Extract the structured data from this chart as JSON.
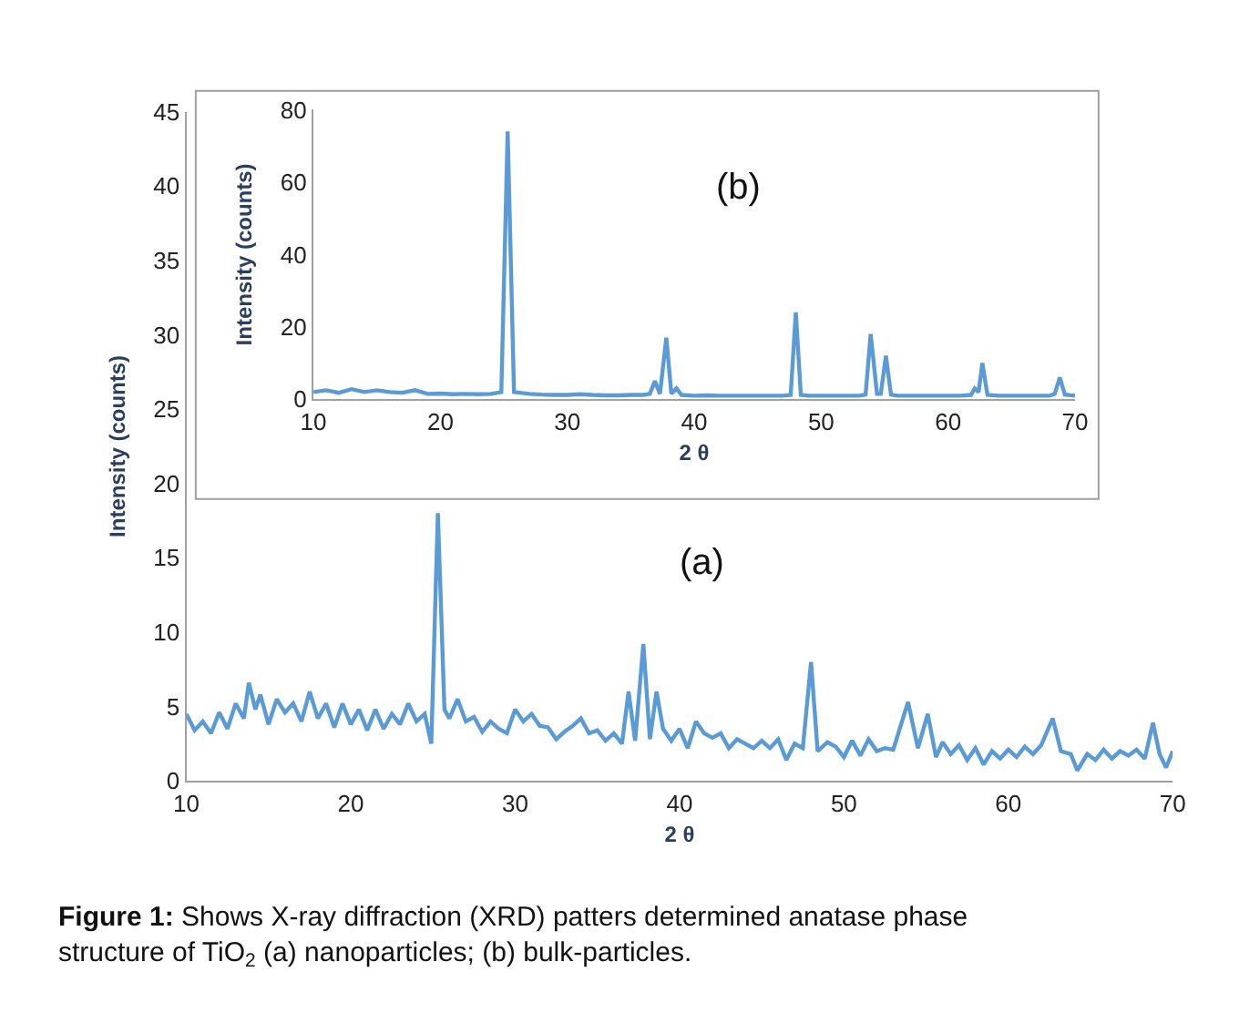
{
  "chart_data": [
    {
      "type": "line",
      "xlabel": "2 θ",
      "ylabel": "Intensity (counts)",
      "xlim": [
        10,
        70
      ],
      "xticks": [
        10,
        20,
        30,
        40,
        50,
        60,
        70
      ],
      "ylim": [
        0,
        45
      ],
      "yticks": [
        0,
        5,
        10,
        15,
        20,
        25,
        30,
        35,
        40,
        45
      ],
      "grid": false,
      "marker": "none",
      "line_style": "solid",
      "annotations": [
        "(a)",
        "Figure 1: Shows X-ray diffraction (XRD) patters determined anatase phase structure of TiO$_{2}$ (a) nanoparticles; (b) bulk-particles."
      ],
      "series": [
        {
          "color": "#5b9bd5",
          "x": [
            10,
            10.5,
            11,
            11.5,
            12,
            12.5,
            13,
            13.5,
            13.8,
            14.2,
            14.5,
            15,
            15.5,
            16,
            16.5,
            17,
            17.5,
            18,
            18.5,
            19,
            19.5,
            20,
            20.5,
            21,
            21.5,
            22,
            22.5,
            23,
            23.5,
            24,
            24.5,
            24.9,
            25.3,
            25.7,
            26,
            26.5,
            27,
            27.5,
            28,
            28.5,
            29,
            29.5,
            30,
            30.5,
            31,
            31.5,
            32,
            32.5,
            33,
            33.5,
            34,
            34.5,
            35,
            35.5,
            36,
            36.5,
            36.9,
            37.3,
            37.8,
            38.2,
            38.6,
            39,
            39.5,
            40,
            40.5,
            41,
            41.5,
            42,
            42.5,
            43,
            43.5,
            44,
            44.5,
            45,
            45.5,
            46,
            46.5,
            47,
            47.5,
            48,
            48.4,
            49,
            49.5,
            50,
            50.5,
            51,
            51.5,
            52,
            52.5,
            53,
            53.9,
            54.5,
            55.1,
            55.6,
            56,
            56.5,
            57,
            57.5,
            58,
            58.5,
            59,
            59.5,
            60,
            60.5,
            61,
            61.5,
            62,
            62.7,
            63.2,
            63.8,
            64.2,
            64.8,
            65.3,
            65.8,
            66.3,
            66.8,
            67.3,
            67.8,
            68.3,
            68.8,
            69.2,
            69.6,
            70
          ],
          "values": [
            4.5,
            3.4,
            4,
            3.2,
            4.6,
            3.5,
            5.2,
            4.2,
            6.6,
            4.8,
            5.8,
            3.8,
            5.5,
            4.6,
            5.2,
            4,
            6,
            4.2,
            5.2,
            3.6,
            5.2,
            3.8,
            4.8,
            3.4,
            4.8,
            3.5,
            4.5,
            3.8,
            5.2,
            4,
            4.5,
            2.5,
            18,
            4.8,
            4.2,
            5.5,
            4,
            4.3,
            3.3,
            4,
            3.5,
            3.2,
            4.8,
            4,
            4.5,
            3.7,
            3.6,
            2.8,
            3.3,
            3.7,
            4.2,
            3.2,
            3.4,
            2.7,
            3.2,
            2.5,
            6,
            2.7,
            9.2,
            2.8,
            6,
            3.5,
            2.7,
            3.5,
            2.2,
            4,
            3.2,
            2.9,
            3.2,
            2.2,
            2.8,
            2.5,
            2.2,
            2.7,
            2.2,
            2.8,
            1.4,
            2.5,
            2.2,
            8,
            2,
            2.6,
            2.3,
            1.6,
            2.7,
            1.7,
            2.8,
            2,
            2.2,
            2.1,
            5.3,
            2.2,
            4.5,
            1.6,
            2.6,
            1.8,
            2.4,
            1.4,
            2.2,
            1.1,
            2,
            1.5,
            2.1,
            1.6,
            2.3,
            1.8,
            2.4,
            4.2,
            2,
            1.8,
            0.7,
            1.8,
            1.4,
            2.1,
            1.5,
            2,
            1.7,
            2.1,
            1.5,
            3.9,
            1.8,
            0.9,
            2
          ]
        }
      ]
    },
    {
      "type": "line",
      "xlabel": "2 θ",
      "ylabel": "Intensity (counts)",
      "xlim": [
        10,
        70
      ],
      "xticks": [
        10,
        20,
        30,
        40,
        50,
        60,
        70
      ],
      "ylim": [
        0,
        80
      ],
      "yticks": [
        0,
        20,
        40,
        60,
        80
      ],
      "grid": false,
      "marker": "none",
      "line_style": "solid",
      "annotations": [
        "(b)"
      ],
      "series": [
        {
          "color": "#5b9bd5",
          "x": [
            10,
            11,
            12,
            13,
            14,
            15,
            16,
            17,
            18,
            19,
            20,
            21,
            22,
            23,
            24,
            24.8,
            25.3,
            25.8,
            27,
            28,
            29,
            30,
            31,
            32,
            33,
            34,
            35,
            36,
            36.5,
            36.9,
            37.3,
            37.8,
            38.2,
            38.6,
            39,
            40,
            41,
            42,
            43,
            44,
            45,
            46,
            47,
            47.6,
            48,
            48.4,
            49,
            50,
            51,
            52,
            53,
            53.5,
            53.9,
            54.4,
            54.7,
            55.1,
            55.5,
            56,
            57,
            58,
            59,
            60,
            61,
            61.8,
            62.1,
            62.4,
            62.7,
            63.1,
            64,
            65,
            66,
            67,
            68,
            68.4,
            68.8,
            69.2,
            70
          ],
          "values": [
            2,
            2.5,
            1.8,
            2.8,
            2,
            2.5,
            2,
            1.8,
            2.5,
            1.5,
            1.6,
            1.4,
            1.5,
            1.4,
            1.5,
            2,
            74,
            2,
            1.5,
            1.3,
            1.2,
            1.2,
            1.4,
            1.2,
            1.1,
            1.1,
            1.2,
            1.2,
            1.5,
            5,
            1.5,
            17,
            1.5,
            3,
            1.2,
            1,
            1.1,
            1,
            1,
            1,
            1,
            1,
            1,
            1.2,
            24,
            1.2,
            1,
            1,
            1,
            1,
            1,
            1.3,
            18,
            1.5,
            1.5,
            12,
            1.3,
            1,
            1,
            1,
            1,
            1,
            1,
            1.2,
            3,
            2,
            10,
            1.2,
            1,
            1,
            1,
            1,
            1,
            1.5,
            6,
            1.3,
            1
          ]
        }
      ]
    }
  ]
}
